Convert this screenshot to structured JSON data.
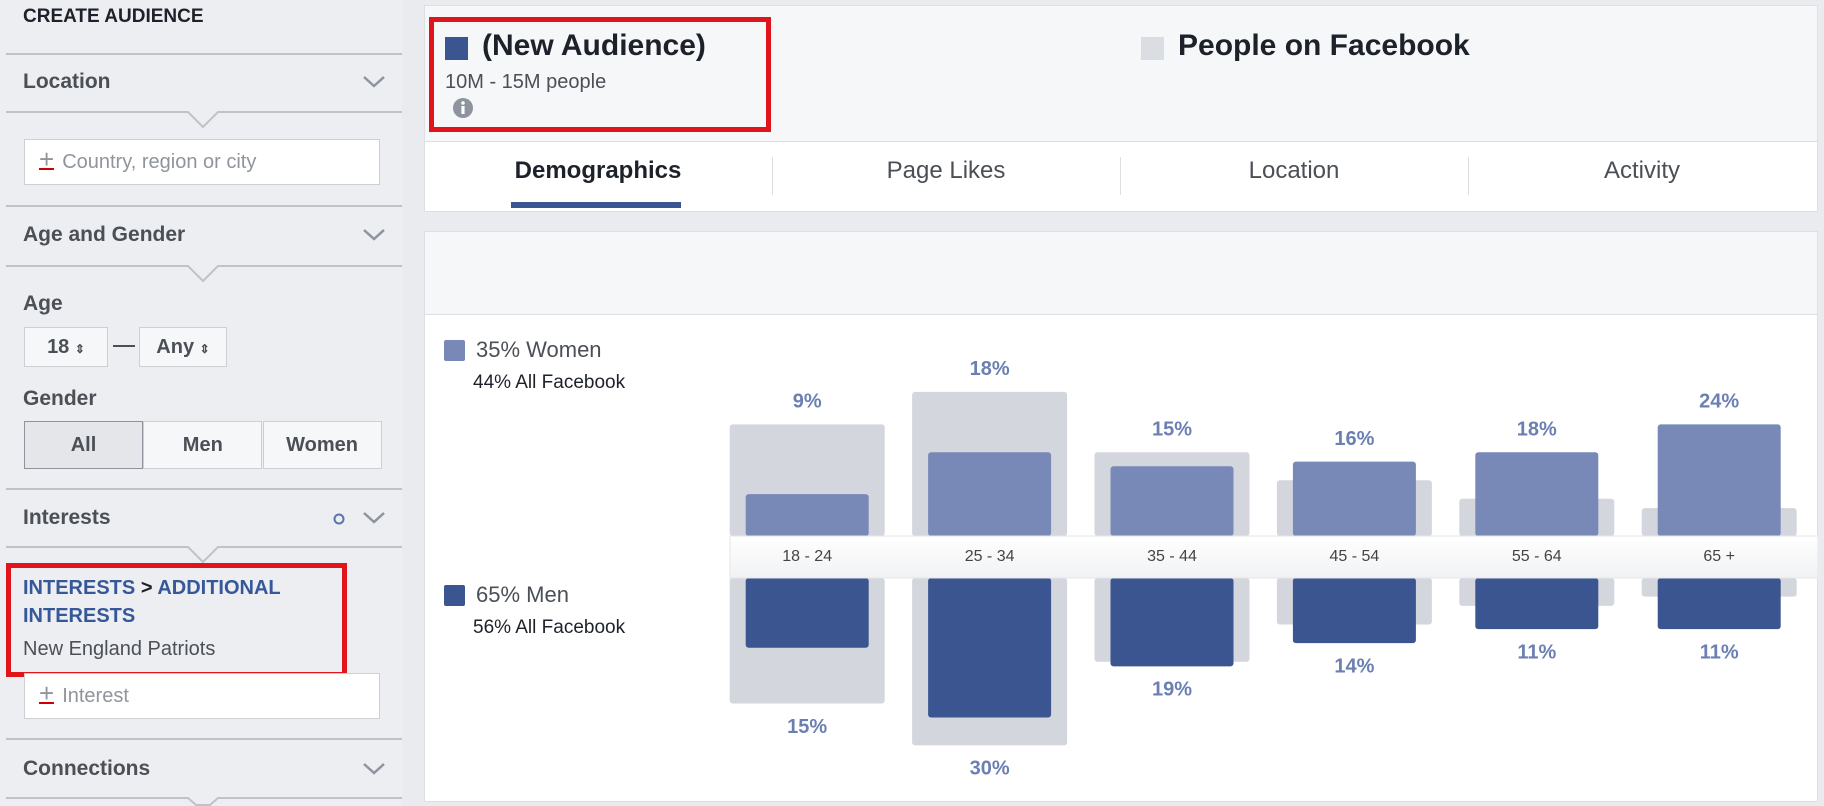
{
  "sidebar": {
    "title": "CREATE AUDIENCE",
    "location": {
      "label": "Location",
      "placeholder": "Country, region or city"
    },
    "age_gender": {
      "label": "Age and Gender",
      "age_label": "Age",
      "age_min": 18,
      "age_max": "Any",
      "gender_label": "Gender",
      "gender_options": [
        "All",
        "Men",
        "Women"
      ],
      "gender_selected": 0
    },
    "interests": {
      "label": "Interests",
      "path": [
        "INTERESTS",
        "ADDITIONAL INTERESTS"
      ],
      "separator": ">",
      "items": [
        "New England Patriots"
      ],
      "placeholder": "Interest"
    },
    "connections": {
      "label": "Connections"
    }
  },
  "header": {
    "audience": {
      "name": "(New Audience)",
      "size": "10M - 15M people",
      "color": "#3b5590"
    },
    "comparison": {
      "name": "People on Facebook",
      "color": "#dadde1"
    }
  },
  "tabs": {
    "items": [
      "Demographics",
      "Page Likes",
      "Location",
      "Activity"
    ],
    "active": 0
  },
  "chart_data": {
    "type": "bar",
    "categories": [
      "18 - 24",
      "25 - 34",
      "35 - 44",
      "45 - 54",
      "55 - 64",
      "65 +"
    ],
    "ylim": [
      0,
      40
    ],
    "series": [
      {
        "name": "35% Women",
        "color": "#7889b7",
        "direction": "up",
        "swatch": true,
        "values": [
          9,
          18,
          15,
          16,
          18,
          24
        ],
        "value_labels": [
          "9%",
          "18%",
          "15%",
          "16%",
          "18%",
          "24%"
        ]
      },
      {
        "name": "65% Men",
        "color": "#3b5590",
        "direction": "down",
        "swatch": true,
        "values": [
          15,
          30,
          19,
          14,
          11,
          11
        ],
        "value_labels": [
          "15%",
          "30%",
          "19%",
          "14%",
          "11%",
          "11%"
        ]
      },
      {
        "name": "44% All Facebook",
        "color": "#d3d6dc",
        "direction": "up",
        "swatch": false,
        "values": [
          24,
          31,
          18,
          12,
          8,
          6
        ]
      },
      {
        "name": "56% All Facebook",
        "color": "#d3d6dc",
        "direction": "down",
        "swatch": false,
        "values": [
          27,
          36,
          18,
          10,
          6,
          4
        ]
      }
    ]
  }
}
